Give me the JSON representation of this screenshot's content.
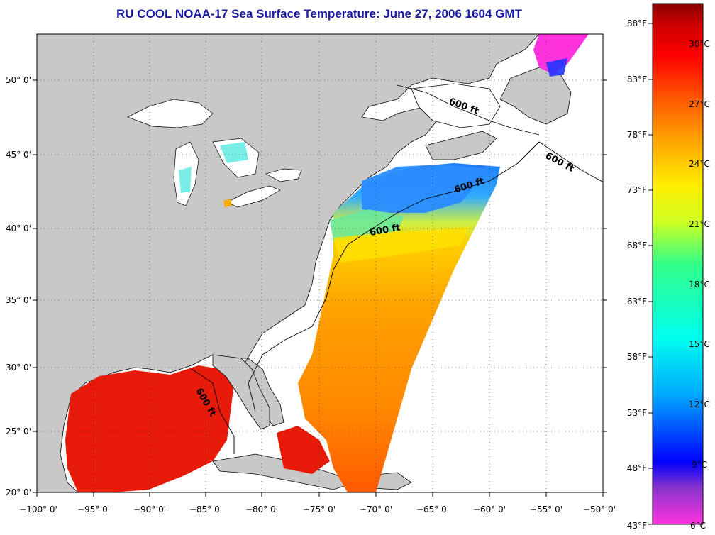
{
  "title": "RU COOL  NOAA-17  Sea Surface Temperature:  June 27, 2006 1604 GMT",
  "lat_labels": [
    "50° 0'",
    "45° 0'",
    "40° 0'",
    "35° 0'",
    "30° 0'",
    "25° 0'",
    "20° 0'"
  ],
  "lon_labels": [
    "−100° 0'",
    "−95° 0'",
    "−90° 0'",
    "−85° 0'",
    "−80° 0'",
    "−75° 0'",
    "−70° 0'",
    "−65° 0'",
    "−60° 0'",
    "−55° 0'",
    "−50° 0'"
  ],
  "depth_labels": [
    "600 ft",
    "600 ft",
    "600 ft",
    "600 ft",
    "600 ft"
  ],
  "colorbar": {
    "fahrenheit": [
      "88°F",
      "83°F",
      "78°F",
      "73°F",
      "68°F",
      "63°F",
      "58°F",
      "53°F",
      "48°F",
      "43°F"
    ],
    "celsius": [
      "30°C",
      "27°C",
      "24°C",
      "21°C",
      "18°C",
      "15°C",
      "12°C",
      "9°C",
      "6°C"
    ]
  },
  "colors": {
    "land": "#c8c8c8",
    "water_no_data": "#ffffff",
    "title": "#1a1aa8",
    "scale": [
      "#ff33dd",
      "#8833cc",
      "#0000ff",
      "#00aaff",
      "#00ffee",
      "#33ff88",
      "#ccff22",
      "#ffee00",
      "#ffaa00",
      "#ff5500",
      "#ff0000",
      "#cc0000",
      "#880000"
    ]
  }
}
